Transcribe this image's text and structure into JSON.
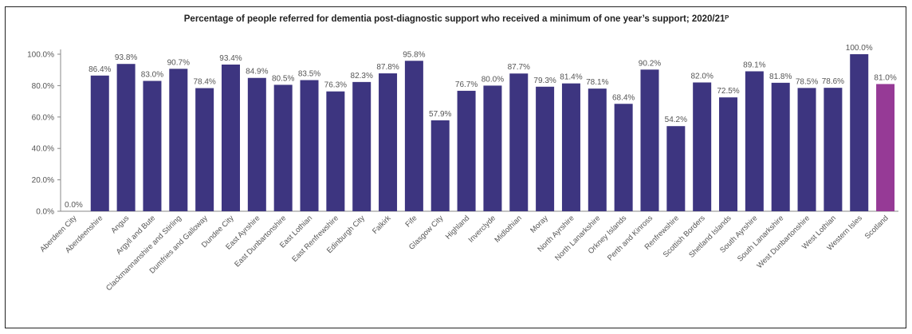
{
  "chart_data": {
    "type": "bar",
    "title": "Percentage of people referred for dementia post-diagnostic support who received a minimum of one year’s support; 2020/21ᴾ",
    "xlabel": "",
    "ylabel": "",
    "ylim": [
      0,
      100
    ],
    "y_ticks": [
      "0.0%",
      "20.0%",
      "40.0%",
      "60.0%",
      "80.0%",
      "100.0%"
    ],
    "grid": false,
    "categories": [
      "Aberdeen City",
      "Aberdeenshire",
      "Angus",
      "Argyll and Bute",
      "Clackmannanshire and Stirling",
      "Dumfries and Galloway",
      "Dundee City",
      "East Ayrshire",
      "East Dunbartonshire",
      "East Lothian",
      "East Renfrewshire",
      "Edinburgh City",
      "Falkirk",
      "Fife",
      "Glasgow City",
      "Highland",
      "Inverclyde",
      "Midlothian",
      "Moray",
      "North Ayrshire",
      "North Lanarkshire",
      "Orkney Islands",
      "Perth and Kinross",
      "Renfrewshire",
      "Scottish Borders",
      "Shetland Islands",
      "South Ayrshire",
      "South Lanarkshire",
      "West Dunbartonshire",
      "West Lothian",
      "Western Isles",
      "Scotland"
    ],
    "values": [
      0.0,
      86.4,
      93.8,
      83.0,
      90.7,
      78.4,
      93.4,
      84.9,
      80.5,
      83.5,
      76.3,
      82.3,
      87.8,
      95.8,
      57.9,
      76.7,
      80.0,
      87.7,
      79.3,
      81.4,
      78.1,
      68.4,
      90.2,
      54.2,
      82.0,
      72.5,
      89.1,
      81.8,
      78.5,
      78.6,
      100.0,
      81.0
    ],
    "labels": [
      "0.0%",
      "86.4%",
      "93.8%",
      "83.0%",
      "90.7%",
      "78.4%",
      "93.4%",
      "84.9%",
      "80.5%",
      "83.5%",
      "76.3%",
      "82.3%",
      "87.8%",
      "95.8%",
      "57.9%",
      "76.7%",
      "80.0%",
      "87.7%",
      "79.3%",
      "81.4%",
      "78.1%",
      "68.4%",
      "90.2%",
      "54.2%",
      "82.0%",
      "72.5%",
      "89.1%",
      "81.8%",
      "78.5%",
      "78.6%",
      "100.0%",
      "81.0%"
    ],
    "colors": {
      "default": "#3d3580",
      "highlight": "#963a96"
    },
    "highlight_category": "Scotland"
  }
}
